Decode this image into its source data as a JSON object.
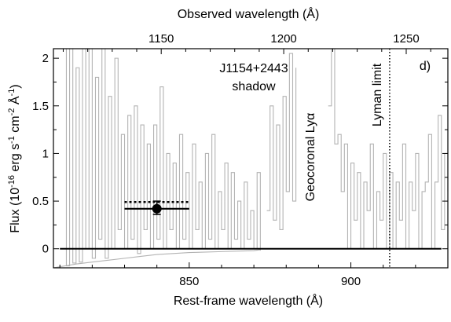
{
  "chart_data": {
    "type": "line",
    "panel_label": "d)",
    "xlabel": "Rest-frame wavelength (Å)",
    "top_xlabel": "Observed wavelength (Å)",
    "ylabel_main": "Flux (10",
    "ylabel_exp1": "-16",
    "ylabel_mid": " erg s",
    "ylabel_exp2": "-1",
    "ylabel_mid2": " cm",
    "ylabel_exp3": "-2",
    "ylabel_mid3": " Å",
    "ylabel_exp4": "-1",
    "ylabel_end": ")",
    "xlim": [
      808,
      930
    ],
    "ylim": [
      -0.2,
      2.1
    ],
    "top_xlim": [
      1106,
      1267
    ],
    "x_ticks": [
      850,
      900
    ],
    "x_tick_labels": [
      "850",
      "900"
    ],
    "top_x_ticks": [
      1150,
      1200,
      1250
    ],
    "top_x_tick_labels": [
      "1150",
      "1200",
      "1250"
    ],
    "y_ticks": [
      0,
      0.5,
      1,
      1.5,
      2
    ],
    "y_tick_labels": [
      "0",
      "0.5",
      "1",
      "1.5",
      "2"
    ],
    "annotations": {
      "target": "J1154+2443",
      "target_sub": "shadow",
      "geocoronal": "Geocoronal Lyα",
      "lyman_limit": "Lyman limit"
    },
    "zero_line": 0,
    "lyman_limit_x": 912,
    "measurement_point": {
      "x": 840,
      "y": 0.42,
      "x_err": [
        830,
        850
      ],
      "y_err": [
        0.36,
        0.5
      ]
    },
    "dotted_level": {
      "y": 0.49,
      "x_range": [
        830,
        850
      ]
    },
    "envelope": {
      "x": [
        808,
        815,
        820,
        825,
        830,
        835,
        840,
        850,
        860,
        870,
        872
      ],
      "y": [
        -0.2,
        -0.16,
        -0.14,
        -0.12,
        -0.1,
        -0.08,
        -0.06,
        -0.04,
        -0.03,
        -0.02,
        -0.01
      ]
    },
    "series": [
      {
        "color": "#b3b3b3",
        "segments": [
          {
            "x": [
              810,
              812,
              813,
              814,
              815,
              816,
              817,
              818,
              819,
              820,
              821,
              822,
              823,
              824,
              825,
              826,
              827,
              828,
              829,
              830,
              831,
              832,
              833,
              834,
              835,
              836,
              837,
              838,
              839,
              840,
              841,
              842,
              843,
              844,
              845,
              846,
              847,
              848,
              849,
              850,
              851,
              852,
              853,
              854,
              855,
              856,
              857,
              858,
              859,
              860,
              861,
              862,
              863,
              864,
              865,
              866,
              867,
              868,
              869,
              870,
              871,
              872
            ],
            "y": [
              2.1,
              -0.18,
              2.1,
              -0.15,
              1.9,
              -0.14,
              2.1,
              0.0,
              2.1,
              -0.1,
              1.8,
              0.1,
              2.1,
              -0.1,
              1.6,
              0.0,
              2.0,
              0.2,
              1.2,
              0.0,
              1.4,
              0.1,
              1.5,
              -0.05,
              1.3,
              0.2,
              1.1,
              0.0,
              1.3,
              0.1,
              1.7,
              0.0,
              1.0,
              0.2,
              0.9,
              0.0,
              1.2,
              0.1,
              0.8,
              0.0,
              1.1,
              0.2,
              0.7,
              0.0,
              1.0,
              0.1,
              1.2,
              0.0,
              0.6,
              0.2,
              0.9,
              0.0,
              0.8,
              0.1,
              0.5,
              0.0,
              0.7,
              0.1,
              0.4,
              0.0,
              0.8,
              -0.02
            ]
          },
          {
            "x": [
              874,
              875,
              876,
              877,
              878,
              879,
              880,
              881,
              882,
              883
            ],
            "y": [
              0.4,
              1.5,
              0.3,
              1.3,
              0.2,
              1.6,
              0.6,
              2.05,
              0.5,
              1.9
            ]
          },
          {
            "x": [
              893,
              894,
              895,
              896,
              897,
              898,
              899,
              900,
              901,
              902,
              903,
              904,
              905,
              906,
              907,
              908,
              909,
              910,
              911,
              912,
              913,
              914,
              915,
              916,
              917,
              918,
              919,
              920,
              921,
              922,
              923,
              924,
              925,
              926,
              927,
              928,
              929,
              930
            ],
            "y": [
              1.5,
              2.1,
              1.1,
              1.2,
              0.6,
              1.1,
              0.0,
              0.9,
              0.3,
              0.8,
              0.0,
              0.7,
              0.4,
              1.1,
              0.0,
              0.6,
              0.3,
              1.0,
              0.0,
              0.8,
              0.0,
              0.7,
              0.3,
              1.1,
              0.0,
              0.7,
              0.4,
              1.0,
              0.0,
              0.6,
              0.7,
              1.2,
              0.0,
              0.7,
              1.4,
              0.2,
              1.0,
              0.6
            ]
          }
        ]
      }
    ]
  }
}
